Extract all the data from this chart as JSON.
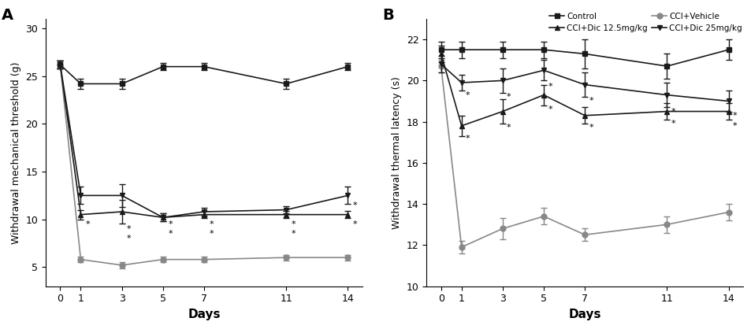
{
  "days": [
    0,
    1,
    3,
    5,
    7,
    11,
    14
  ],
  "panel_A": {
    "title": "A",
    "ylabel": "Withdrawal mechanical threshold (g)",
    "xlabel": "Days",
    "ylim": [
      3,
      31
    ],
    "yticks": [
      5,
      10,
      15,
      20,
      25,
      30
    ],
    "series": [
      {
        "name": "Control",
        "y": [
          26.2,
          24.2,
          24.2,
          26.0,
          26.0,
          24.2,
          26.0
        ],
        "yerr": [
          0.4,
          0.5,
          0.5,
          0.4,
          0.4,
          0.5,
          0.4
        ],
        "color": "#1a1a1a",
        "marker": "s",
        "linestyle": "-",
        "zorder": 4
      },
      {
        "name": "CCI+Vehicle",
        "y": [
          26.2,
          5.8,
          5.2,
          5.8,
          5.8,
          6.0,
          6.0
        ],
        "yerr": [
          0.4,
          0.3,
          0.3,
          0.3,
          0.3,
          0.3,
          0.3
        ],
        "color": "#888888",
        "marker": "o",
        "linestyle": "-",
        "zorder": 2
      },
      {
        "name": "CCI+Dic 12.5mg/kg",
        "y": [
          26.2,
          10.5,
          10.8,
          10.2,
          10.5,
          10.5,
          10.5
        ],
        "yerr": [
          0.4,
          0.5,
          1.2,
          0.4,
          0.4,
          0.4,
          0.4
        ],
        "color": "#1a1a1a",
        "marker": "^",
        "linestyle": "-",
        "zorder": 3
      },
      {
        "name": "CCI+Dic 25mg/kg",
        "y": [
          26.2,
          12.5,
          12.5,
          10.2,
          10.8,
          11.0,
          12.5
        ],
        "yerr": [
          0.4,
          0.9,
          1.2,
          0.4,
          0.4,
          0.4,
          0.9
        ],
        "color": "#1a1a1a",
        "marker": "v",
        "linestyle": "-",
        "zorder": 3
      }
    ],
    "stars": [
      {
        "day_idx": 1,
        "y": 9.3,
        "label": "*"
      },
      {
        "day_idx": 2,
        "y": 8.8,
        "label": "*"
      },
      {
        "day_idx": 3,
        "y": 9.3,
        "label": "*"
      },
      {
        "day_idx": 3,
        "y": 8.5,
        "label": "*"
      },
      {
        "day_idx": 4,
        "y": 9.3,
        "label": "*"
      },
      {
        "day_idx": 4,
        "y": 8.5,
        "label": "*"
      },
      {
        "day_idx": 5,
        "y": 9.3,
        "label": "*"
      },
      {
        "day_idx": 5,
        "y": 8.5,
        "label": "*"
      },
      {
        "day_idx": 6,
        "y": 9.3,
        "label": "*"
      },
      {
        "day_idx": 6,
        "y": 8.5,
        "label": "*"
      }
    ]
  },
  "panel_B": {
    "title": "B",
    "ylabel": "Withdrawal thermal latency (s)",
    "xlabel": "Days",
    "ylim": [
      10,
      23
    ],
    "yticks": [
      10,
      12,
      14,
      16,
      18,
      20,
      22
    ],
    "series": [
      {
        "name": "Control",
        "y": [
          21.5,
          21.5,
          21.5,
          21.5,
          21.3,
          20.7,
          21.5
        ],
        "yerr": [
          0.4,
          0.4,
          0.4,
          0.4,
          0.7,
          0.6,
          0.5
        ],
        "color": "#1a1a1a",
        "marker": "s",
        "linestyle": "-",
        "zorder": 4
      },
      {
        "name": "CCI+Vehicle",
        "y": [
          20.7,
          11.9,
          12.8,
          13.4,
          12.5,
          13.0,
          13.6
        ],
        "yerr": [
          0.3,
          0.3,
          0.5,
          0.4,
          0.3,
          0.4,
          0.4
        ],
        "color": "#888888",
        "marker": "o",
        "linestyle": "-",
        "zorder": 2
      },
      {
        "name": "CCI+Dic 12.5mg/kg",
        "y": [
          21.3,
          17.8,
          18.5,
          19.3,
          18.3,
          18.5,
          18.5
        ],
        "yerr": [
          0.4,
          0.5,
          0.6,
          0.5,
          0.4,
          0.4,
          0.4
        ],
        "color": "#1a1a1a",
        "marker": "^",
        "linestyle": "-",
        "zorder": 3
      },
      {
        "name": "CCI+Dic 25mg/kg",
        "y": [
          20.8,
          19.9,
          20.0,
          20.5,
          19.8,
          19.3,
          19.0
        ],
        "yerr": [
          0.4,
          0.4,
          0.6,
          0.5,
          0.6,
          0.6,
          0.5
        ],
        "color": "#1a1a1a",
        "marker": "v",
        "linestyle": "-",
        "zorder": 3
      }
    ]
  },
  "legend_order": [
    "Control",
    "CCI+Dic 12.5mg/kg",
    "CCI+Vehicle",
    "CCI+Dic 25mg/kg"
  ],
  "marker_size": 5,
  "line_width": 1.2,
  "capsize": 3,
  "elinewidth": 1.0,
  "background_color": "#ffffff"
}
